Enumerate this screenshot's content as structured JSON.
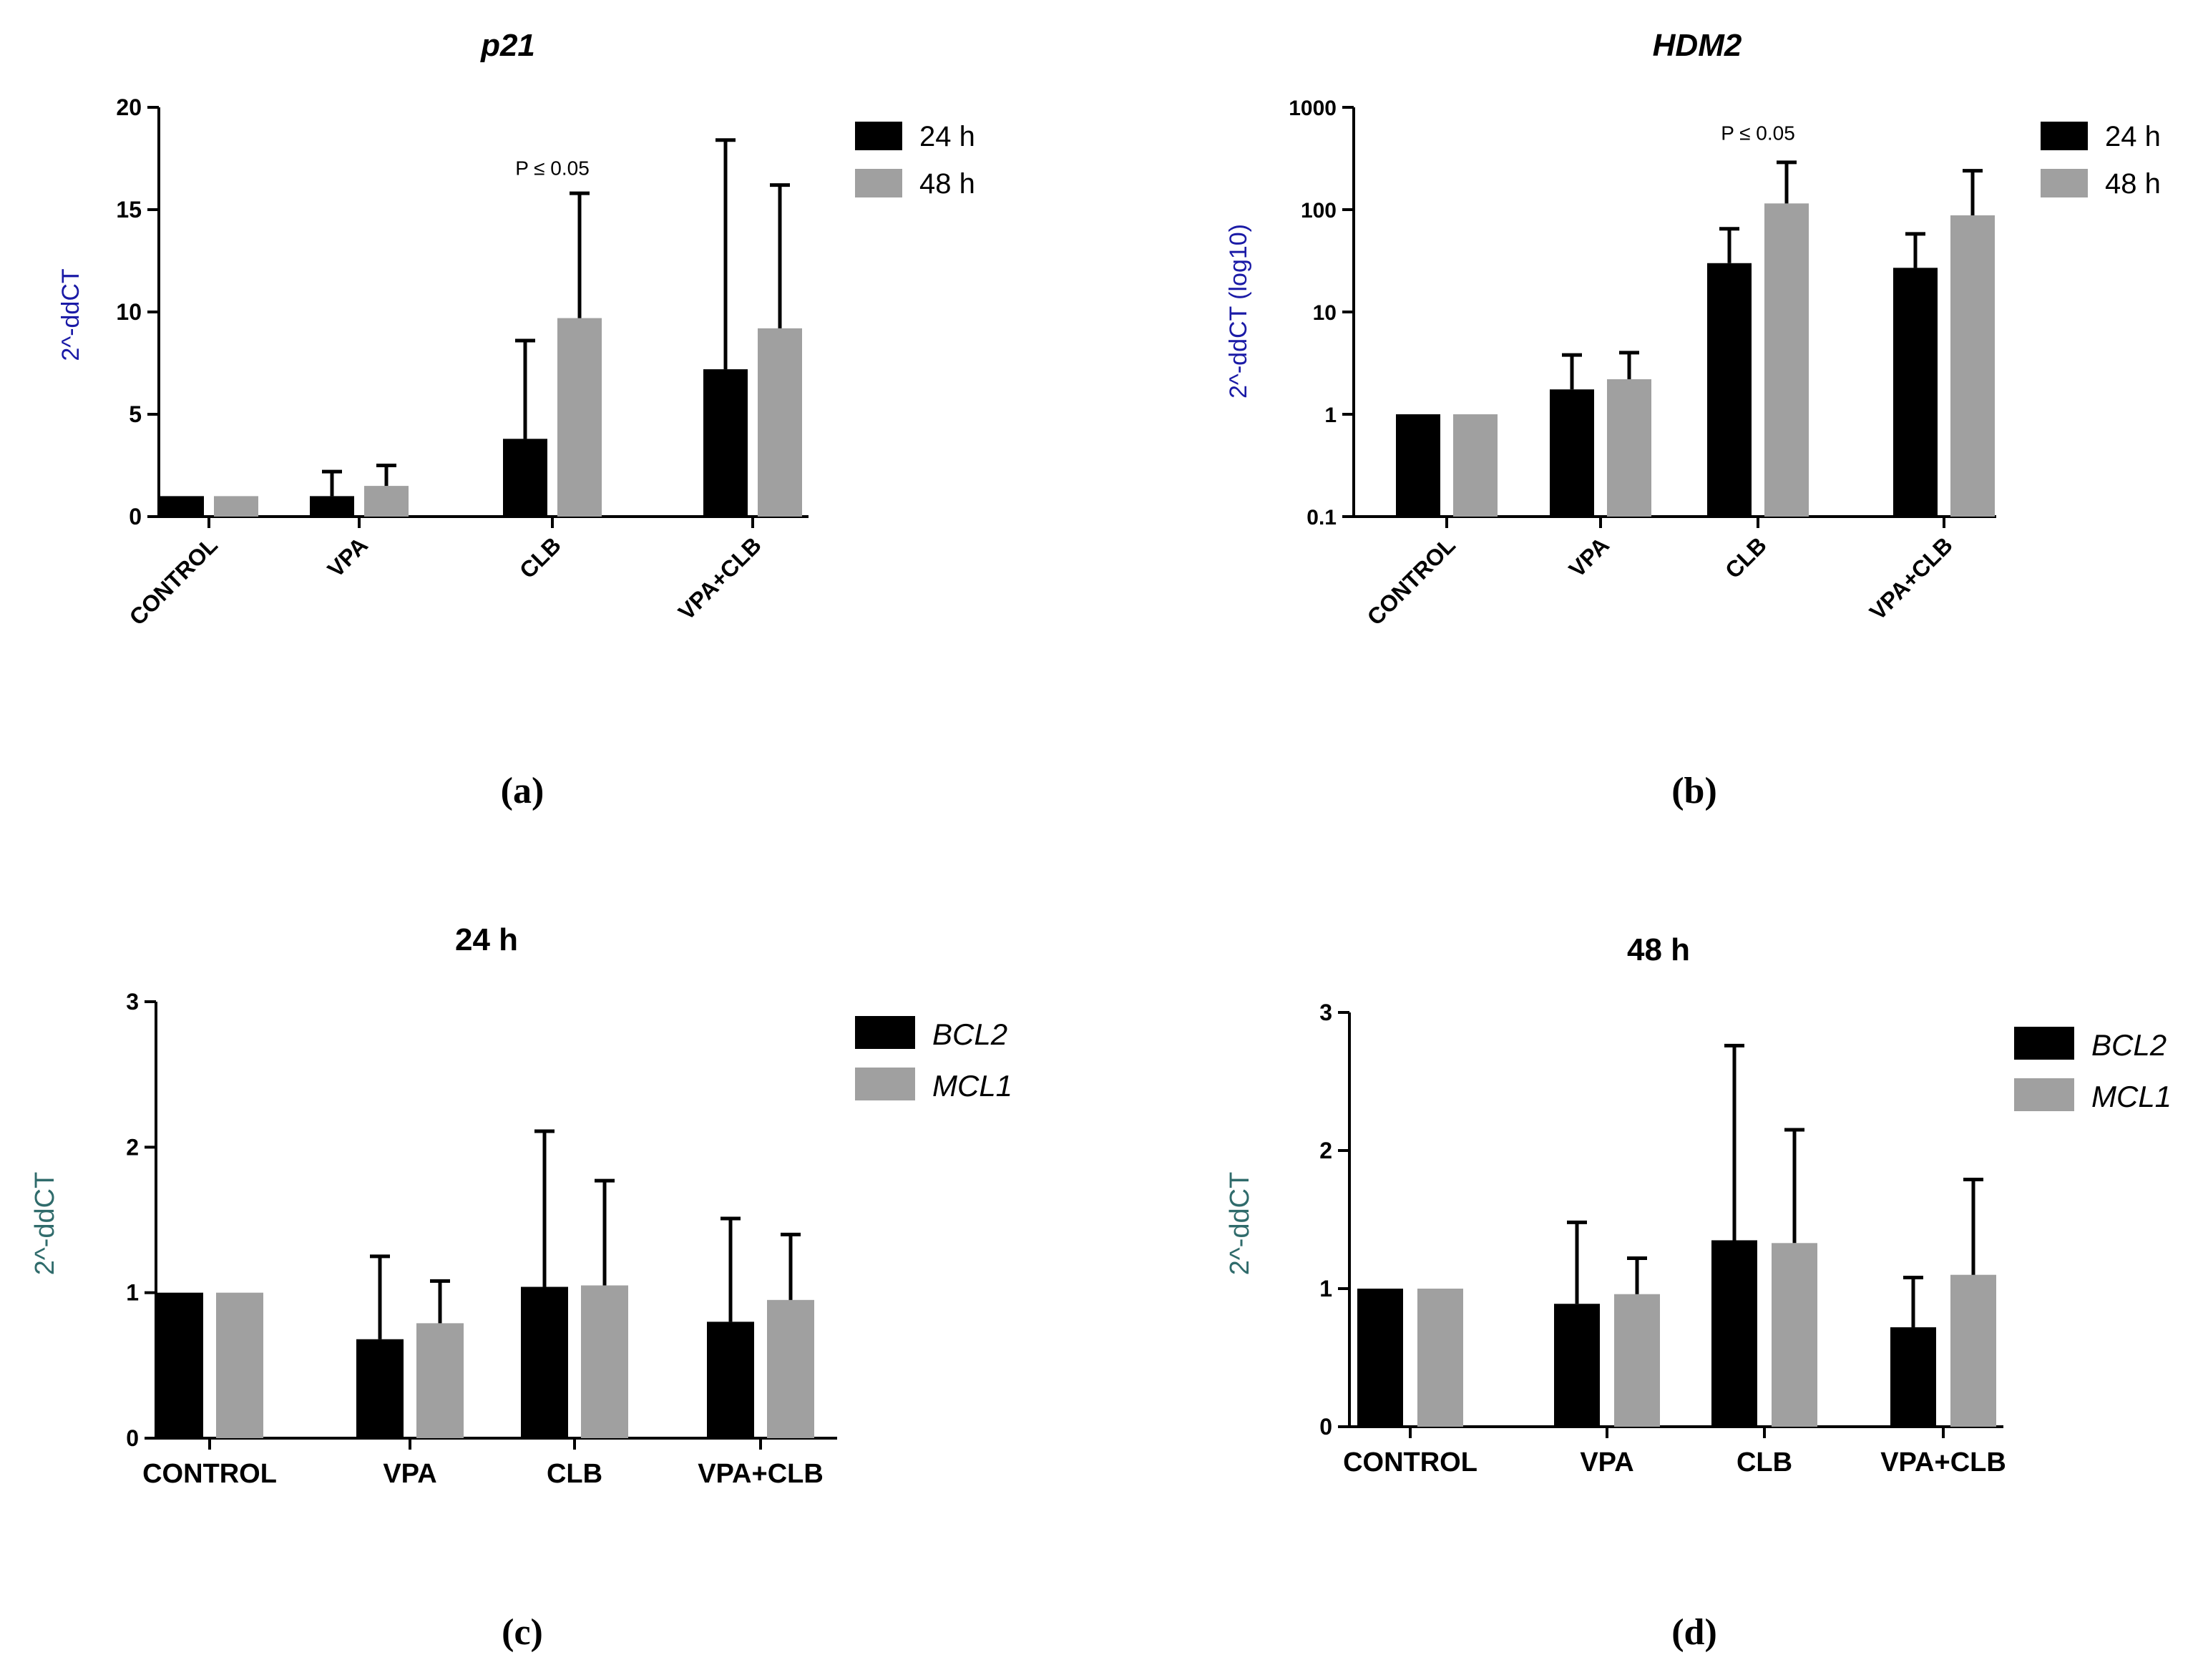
{
  "colors": {
    "series_black": "#000000",
    "series_grey": "#a0a0a0",
    "ylabel_blue": "#1a1aa6",
    "ylabel_teal": "#2f6b6b",
    "axis": "#000000"
  },
  "chart_data": [
    {
      "type": "bar",
      "panel_label": "(a)",
      "title": "p21",
      "title_italic": true,
      "ylabel": "2^-ddCT",
      "ylabel_color": "blue",
      "xlabel": "",
      "scale": "linear",
      "ylim": [
        0,
        20
      ],
      "yticks": [
        "0",
        "5",
        "10",
        "15",
        "20"
      ],
      "ytick_values": [
        0,
        5,
        10,
        15,
        20
      ],
      "categories": [
        "CONTROL",
        "VPA",
        "CLB",
        "VPA+CLB"
      ],
      "rotated_xticks": true,
      "legend_italic": false,
      "legend_position": "top-right",
      "series": [
        {
          "name": "24 h",
          "color": "black",
          "values": [
            1.0,
            1.0,
            3.8,
            7.2
          ],
          "errors": [
            0,
            1.2,
            4.8,
            11.2
          ]
        },
        {
          "name": "48 h",
          "color": "grey",
          "values": [
            1.0,
            1.5,
            9.7,
            9.2
          ],
          "errors": [
            0,
            1.0,
            6.1,
            7.0
          ]
        }
      ],
      "annotation": {
        "text": "P ≤ 0.05",
        "category": "CLB",
        "y": 16.7
      }
    },
    {
      "type": "bar",
      "panel_label": "(b)",
      "title": "HDM2",
      "title_italic": true,
      "ylabel": "2^-ddCT (log10)",
      "ylabel_color": "blue",
      "xlabel": "",
      "scale": "log",
      "ylim": [
        0.1,
        1000
      ],
      "yticks": [
        "0.1",
        "1",
        "10",
        "100",
        "1000"
      ],
      "ytick_values": [
        0.1,
        1,
        10,
        100,
        1000
      ],
      "categories": [
        "CONTROL",
        "VPA",
        "CLB",
        "VPA+CLB"
      ],
      "rotated_xticks": true,
      "legend_italic": false,
      "legend_position": "top-right",
      "series": [
        {
          "name": "24 h",
          "color": "black",
          "values": [
            1.0,
            1.75,
            30,
            27
          ],
          "err_top": [
            1.0,
            3.8,
            65,
            58
          ]
        },
        {
          "name": "48 h",
          "color": "grey",
          "values": [
            1.0,
            2.2,
            115,
            88
          ],
          "err_top": [
            1.0,
            4.0,
            290,
            240
          ]
        }
      ],
      "annotation": {
        "text": "P ≤ 0.05",
        "category": "CLB",
        "y": 480
      }
    },
    {
      "type": "bar",
      "panel_label": "(c)",
      "title": "24 h",
      "title_italic": false,
      "ylabel": "2^-ddCT",
      "ylabel_color": "teal",
      "xlabel": "",
      "scale": "linear",
      "ylim": [
        0,
        3
      ],
      "yticks": [
        "0",
        "1",
        "2",
        "3"
      ],
      "ytick_values": [
        0,
        1,
        2,
        3
      ],
      "categories": [
        "CONTROL",
        "VPA",
        "CLB",
        "VPA+CLB"
      ],
      "rotated_xticks": false,
      "legend_italic": true,
      "legend_position": "top-right",
      "series": [
        {
          "name": "BCL2",
          "color": "black",
          "values": [
            1.0,
            0.68,
            1.04,
            0.8
          ],
          "errors": [
            0,
            0.57,
            1.07,
            0.71
          ]
        },
        {
          "name": "MCL1",
          "color": "grey",
          "values": [
            1.0,
            0.79,
            1.05,
            0.95
          ],
          "errors": [
            0,
            0.29,
            0.72,
            0.45
          ]
        }
      ]
    },
    {
      "type": "bar",
      "panel_label": "(d)",
      "title": "48 h",
      "title_italic": false,
      "ylabel": "2^-ddCT",
      "ylabel_color": "teal",
      "xlabel": "",
      "scale": "linear",
      "ylim": [
        0,
        3
      ],
      "yticks": [
        "0",
        "1",
        "2",
        "3"
      ],
      "ytick_values": [
        0,
        1,
        2,
        3
      ],
      "categories": [
        "CONTROL",
        "VPA",
        "CLB",
        "VPA+CLB"
      ],
      "rotated_xticks": false,
      "legend_italic": true,
      "legend_position": "top-right",
      "series": [
        {
          "name": "BCL2",
          "color": "black",
          "values": [
            1.0,
            0.89,
            1.35,
            0.72
          ],
          "errors": [
            0,
            0.59,
            1.41,
            0.36
          ]
        },
        {
          "name": "MCL1",
          "color": "grey",
          "values": [
            1.0,
            0.96,
            1.33,
            1.1
          ],
          "errors": [
            0,
            0.26,
            0.82,
            0.69
          ]
        }
      ]
    }
  ]
}
